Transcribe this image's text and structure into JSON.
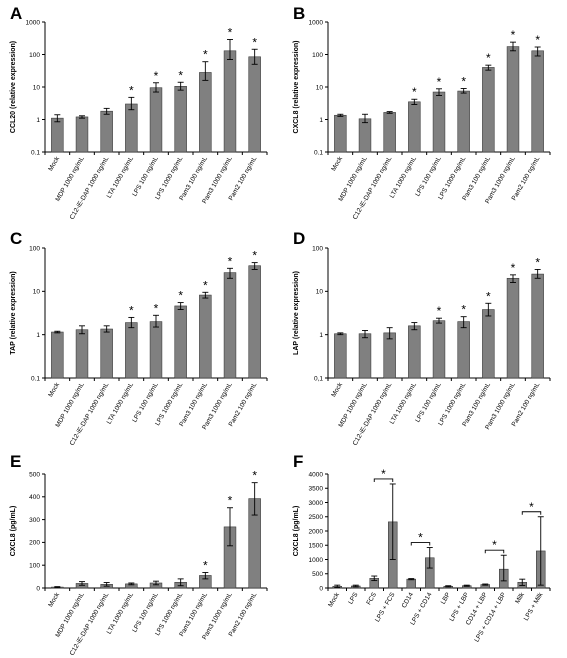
{
  "colors": {
    "bar": "#808080",
    "bar_stroke": "#3a3a3a",
    "axis": "#000000"
  },
  "chart_data": [
    {
      "panel": "A",
      "type": "bar",
      "yscale": "log",
      "ylim": [
        0.1,
        1000
      ],
      "ylabel": "CCL20 (relative expression)",
      "yticks": [
        "0.1",
        "1",
        "10",
        "100",
        "1000"
      ],
      "categories": [
        "Mock",
        "MDP 1000 ng/mL",
        "C12-iE-DAP 1000 ng/mL",
        "LTA 1000 ng/mL",
        "LPS 100 ng/mL",
        "LPS 1000 ng/mL",
        "Pam3 100 ng/mL",
        "Pam3 1000 ng/mL",
        "Pam2 100 ng/mL"
      ],
      "values": [
        1.1,
        1.2,
        1.8,
        3.0,
        9.5,
        10.5,
        28,
        130,
        85
      ],
      "err_low": [
        0.85,
        1.1,
        1.45,
        2.0,
        7.0,
        8.0,
        16,
        70,
        50
      ],
      "err_high": [
        1.4,
        1.3,
        2.2,
        4.8,
        13.5,
        14.0,
        60,
        290,
        145
      ],
      "significant": [
        false,
        false,
        false,
        true,
        true,
        true,
        true,
        true,
        true
      ],
      "sig_marker": "*"
    },
    {
      "panel": "B",
      "type": "bar",
      "yscale": "log",
      "ylim": [
        0.1,
        1000
      ],
      "ylabel": "CXCL8 (relative expression)",
      "yticks": [
        "0.1",
        "1",
        "10",
        "100",
        "1000"
      ],
      "categories": [
        "Mock",
        "MDP 1000 ng/mL",
        "C12-iE-DAP 1000 ng/mL",
        "LTA 1000 ng/mL",
        "LPS 100 ng/mL",
        "LPS 1000 ng/mL",
        "Pam3 100 ng/mL",
        "Pam3 1000 ng/mL",
        "Pam2 100 ng/mL"
      ],
      "values": [
        1.35,
        1.05,
        1.65,
        3.5,
        7.0,
        7.5,
        40,
        175,
        130
      ],
      "err_low": [
        1.25,
        0.8,
        1.55,
        2.9,
        5.5,
        6.5,
        33,
        130,
        90
      ],
      "err_high": [
        1.45,
        1.45,
        1.75,
        4.2,
        8.8,
        9.0,
        47,
        240,
        170
      ],
      "significant": [
        false,
        false,
        false,
        true,
        true,
        true,
        true,
        true,
        true
      ],
      "sig_marker": "*"
    },
    {
      "panel": "C",
      "type": "bar",
      "yscale": "log",
      "ylim": [
        0.1,
        100
      ],
      "ylabel": "TAP (relative expression)",
      "yticks": [
        "0.1",
        "1",
        "10",
        "100"
      ],
      "categories": [
        "Mock",
        "MDP 1000 ng/mL",
        "C12-iE-DAP 1000 ng/mL",
        "LTA 1000 ng/mL",
        "LPS 100 ng/mL",
        "LPS 1000 ng/mL",
        "Pam3 100 ng/mL",
        "Pam3 1000 ng/mL",
        "Pam2 100 ng/mL"
      ],
      "values": [
        1.15,
        1.3,
        1.35,
        1.9,
        2.0,
        4.6,
        8.2,
        27,
        39
      ],
      "err_low": [
        1.1,
        1.05,
        1.15,
        1.45,
        1.5,
        3.8,
        7.0,
        20,
        32
      ],
      "err_high": [
        1.2,
        1.6,
        1.6,
        2.5,
        2.8,
        5.5,
        9.5,
        34,
        46
      ],
      "significant": [
        false,
        false,
        false,
        true,
        true,
        true,
        true,
        true,
        true
      ],
      "sig_marker": "*"
    },
    {
      "panel": "D",
      "type": "bar",
      "yscale": "log",
      "ylim": [
        0.1,
        100
      ],
      "ylabel": "LAP (relative expression)",
      "yticks": [
        "0,1",
        "1",
        "10",
        "100"
      ],
      "categories": [
        "Mock",
        "MDP 1000 ng/mL",
        "C12-iE-DAP 1000 ng/mL",
        "LTA 1000 ng/mL",
        "LPS 100 ng/mL",
        "LPS 1000 ng/mL",
        "Pam3 100 ng/mL",
        "Pam3 1000 ng/mL",
        "Pam2 100 ng/mL"
      ],
      "values": [
        1.05,
        1.05,
        1.1,
        1.6,
        2.1,
        2.0,
        3.8,
        20,
        25
      ],
      "err_low": [
        1.0,
        0.85,
        0.8,
        1.3,
        1.85,
        1.45,
        2.7,
        16,
        20
      ],
      "err_high": [
        1.1,
        1.25,
        1.45,
        1.9,
        2.4,
        2.6,
        5.3,
        24,
        32
      ],
      "significant": [
        false,
        false,
        false,
        false,
        true,
        true,
        true,
        true,
        true
      ],
      "sig_marker": "*"
    },
    {
      "panel": "E",
      "type": "bar",
      "yscale": "linear",
      "ylim": [
        0,
        500
      ],
      "ylabel": "CXCL8 (pg/mL)",
      "yticks": [
        "0",
        "100",
        "200",
        "300",
        "400",
        "500"
      ],
      "categories": [
        "Mock",
        "MDP 1000 ng/mL",
        "C12-iE-DAP 1000 ng/mL",
        "LTA 1000 ng/mL",
        "LPS 100 ng/mL",
        "LPS 1000 ng/mL",
        "Pam3 100 ng/mL",
        "Pam3 1000 ng/mL",
        "Pam2 100 ng/mL"
      ],
      "values": [
        4,
        20,
        16,
        18,
        22,
        25,
        55,
        268,
        392
      ],
      "err_low": [
        2,
        12,
        8,
        14,
        14,
        10,
        40,
        185,
        320
      ],
      "err_high": [
        6,
        28,
        24,
        22,
        30,
        40,
        68,
        352,
        462
      ],
      "significant": [
        false,
        false,
        false,
        false,
        false,
        false,
        true,
        true,
        true
      ],
      "sig_marker": "*"
    },
    {
      "panel": "F",
      "type": "bar",
      "yscale": "linear",
      "ylim": [
        0,
        4000
      ],
      "ylabel": "CXCL8 (pg/mL)",
      "yticks": [
        "0",
        "500",
        "1000",
        "1500",
        "2000",
        "2500",
        "3000",
        "3500",
        "4000"
      ],
      "categories": [
        "Mock",
        "LPS",
        "FCS",
        "LPS + FCS",
        "CD14",
        "LPS + CD14",
        "LBP",
        "LPS + LBP",
        "CD14 + LBP",
        "LPS + CD14 + LBP",
        "Milk",
        "LPS + Milk"
      ],
      "values": [
        60,
        70,
        340,
        2320,
        310,
        1060,
        60,
        80,
        120,
        660,
        200,
        1300
      ],
      "err_low": [
        20,
        40,
        260,
        1000,
        290,
        700,
        40,
        60,
        100,
        250,
        90,
        100
      ],
      "err_high": [
        100,
        100,
        420,
        3650,
        330,
        1420,
        80,
        100,
        140,
        1150,
        310,
        2500
      ],
      "significant": [
        false,
        false,
        false,
        false,
        false,
        false,
        false,
        false,
        false,
        false,
        false,
        false
      ],
      "brackets": [
        {
          "from": 2,
          "to": 3,
          "label": "*"
        },
        {
          "from": 4,
          "to": 5,
          "label": "*"
        },
        {
          "from": 8,
          "to": 9,
          "label": "*"
        },
        {
          "from": 10,
          "to": 11,
          "label": "*"
        }
      ]
    }
  ]
}
